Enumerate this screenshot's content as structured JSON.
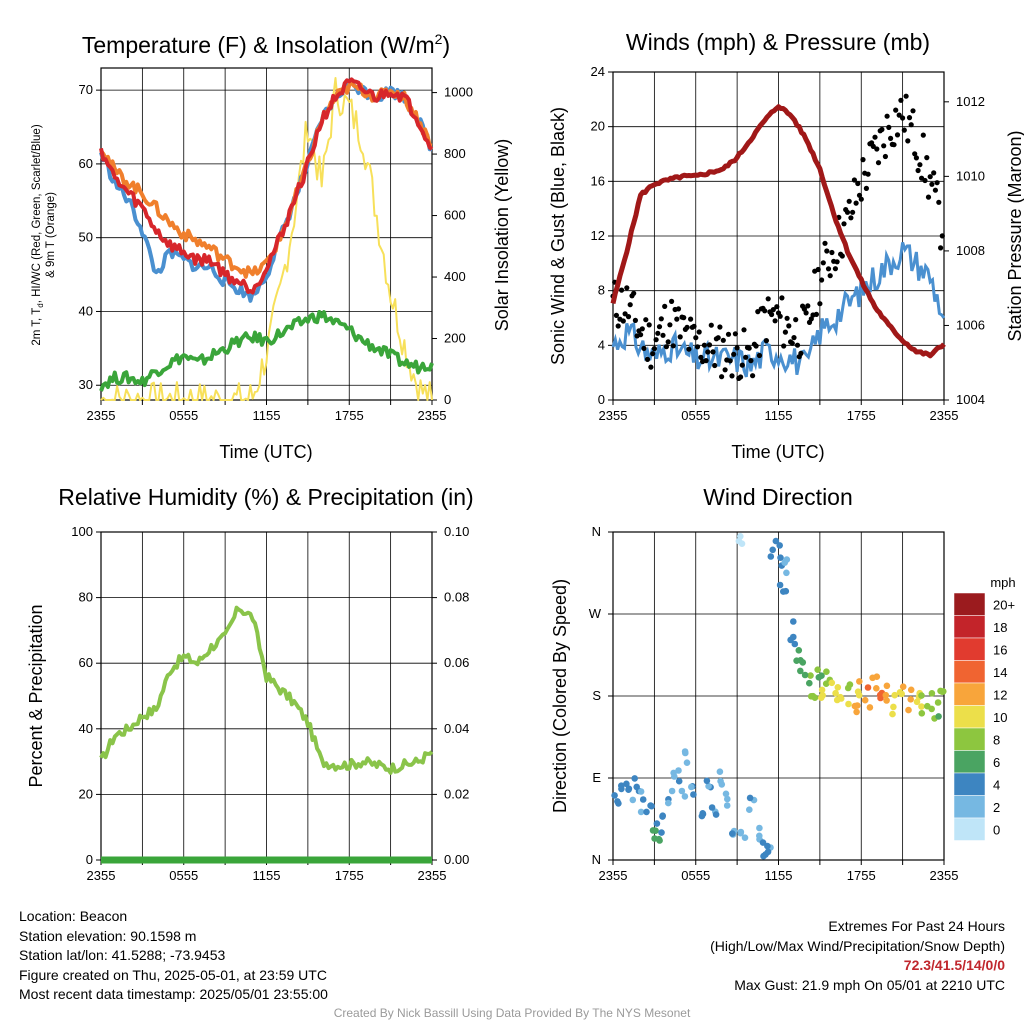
{
  "panels": {
    "temperature": {
      "title": "Temperature (F) & Insolation (W/m",
      "title_sup": "2",
      "title_tail": ")",
      "xlabel": "Time (UTC)",
      "ylabel_line1": "2m T, T",
      "ylabel_sub": "d",
      "ylabel_line1b": ", HI/WC (Red, Green, Scarlet/Blue)",
      "ylabel_line2": "& 9m T (Orange)",
      "ylabel_right": "Solar Insolation (Yellow)"
    },
    "winds": {
      "title": "Winds (mph) & Pressure (mb)",
      "xlabel": "Time (UTC)",
      "ylabel": "Sonic Wind & Gust (Blue, Black)",
      "ylabel_right": "Station Pressure (Maroon)"
    },
    "humidity": {
      "title": "Relative Humidity (%) & Precipitation (in)",
      "ylabel": "Percent & Precipitation"
    },
    "direction": {
      "title": "Wind Direction",
      "ylabel": "Direction (Colored By Speed)",
      "colorbar_title": "mph"
    }
  },
  "colors": {
    "temperature": "#d7262b",
    "heat_index_wind_chill_low": "#4a90d0",
    "dewpoint": "#3aa53a",
    "temp_9m": "#f07f2c",
    "insolation": "#f7e05a",
    "wind": "#4a90d0",
    "gust": "#000000",
    "pressure": "#a01818",
    "humidity": "#8ac44a",
    "precip": "#3aa53a"
  },
  "colorbar": [
    {
      "label": "20+",
      "color": "#9b1b1e"
    },
    {
      "label": "18",
      "color": "#c3242a"
    },
    {
      "label": "16",
      "color": "#e13b2f"
    },
    {
      "label": "14",
      "color": "#f06431"
    },
    {
      "label": "12",
      "color": "#f8a53b"
    },
    {
      "label": "10",
      "color": "#ecdf4a"
    },
    {
      "label": "8",
      "color": "#8dc63f"
    },
    {
      "label": "6",
      "color": "#4aa462"
    },
    {
      "label": "4",
      "color": "#3d85c1"
    },
    {
      "label": "2",
      "color": "#76b8e2"
    },
    {
      "label": "0",
      "color": "#bfe5f8"
    }
  ],
  "footer": {
    "location": "Location: Beacon",
    "elevation": "Station elevation: 90.1598 m",
    "latlon": "Station lat/lon: 41.5288; -73.9453",
    "created": "Figure created on Thu, 2025-05-01, at 23:59 UTC",
    "recent": "Most recent data timestamp: 2025/05/01 23:55:00",
    "extremes_title": "Extremes For Past 24 Hours",
    "extremes_sub": "(High/Low/Max Wind/Precipitation/Snow Depth)",
    "extremes_values": "72.3/41.5/14/0/0",
    "max_gust": "Max Gust: 21.9 mph On 05/01 at 2210 UTC",
    "credit": "Created By Nick Bassill Using Data Provided By The NYS Mesonet"
  },
  "chart_data": [
    {
      "type": "line",
      "title": "Temperature (F) & Insolation (W/m2)",
      "xlabel": "Time (UTC)",
      "ylabel": "2m T, Td, HI/WC (Red, Green, Scarlet/Blue) & 9m T (Orange)",
      "ylabel_right": "Solar Insolation (Yellow)",
      "x_ticks": [
        "2355",
        "0555",
        "1155",
        "1755",
        "2355"
      ],
      "ylim": [
        28,
        73
      ],
      "y_ticks": [
        30,
        40,
        50,
        60,
        70
      ],
      "ylim_right": [
        0,
        1080
      ],
      "y_ticks_right": [
        0,
        200,
        400,
        600,
        800,
        1000
      ],
      "x_hours": [
        0,
        1,
        2,
        3,
        4,
        5,
        6,
        7,
        8,
        9,
        10,
        11,
        12,
        13,
        14,
        15,
        16,
        17,
        18,
        19,
        20,
        21,
        22,
        23,
        24
      ],
      "series": [
        {
          "name": "2m T",
          "color": "#d7262b",
          "axis": "left",
          "values": [
            62,
            58,
            56,
            54,
            51,
            49,
            48,
            47,
            47,
            45,
            44,
            43,
            46,
            50,
            55,
            60,
            66,
            69,
            71,
            70,
            69,
            70,
            69,
            66,
            62
          ]
        },
        {
          "name": "9m T",
          "color": "#f07f2c",
          "axis": "left",
          "values": [
            62.5,
            59,
            57.5,
            56,
            54,
            52,
            50.5,
            49.5,
            48.5,
            47,
            46,
            45,
            46.5,
            50,
            55,
            60,
            66,
            69,
            70.5,
            70,
            69,
            70,
            69,
            66,
            62.5
          ]
        },
        {
          "name": "HI/WC",
          "color": "#4a90d0",
          "axis": "left",
          "values": [
            61.5,
            57.5,
            55,
            51,
            45,
            48,
            47,
            46,
            46,
            44,
            43,
            42,
            45,
            50,
            55,
            60,
            66,
            69,
            71,
            70,
            69,
            70,
            69,
            66,
            62
          ]
        },
        {
          "name": "Td",
          "color": "#3aa53a",
          "axis": "left",
          "values": [
            30,
            31,
            31,
            30.5,
            32,
            33,
            34,
            33,
            34,
            35,
            36,
            36.5,
            36,
            37,
            38,
            39,
            39.5,
            38.5,
            37.5,
            36,
            35,
            34,
            33,
            32.5,
            33
          ]
        },
        {
          "name": "Insolation",
          "color": "#f7e05a",
          "axis": "right",
          "values": [
            0,
            0,
            0,
            0,
            0,
            0,
            0,
            0,
            0,
            0,
            0,
            10,
            150,
            350,
            600,
            900,
            700,
            1000,
            950,
            850,
            600,
            350,
            180,
            40,
            0
          ]
        }
      ]
    },
    {
      "type": "line",
      "title": "Winds (mph) & Pressure (mb)",
      "xlabel": "Time (UTC)",
      "ylabel": "Sonic Wind & Gust (Blue, Black)",
      "ylabel_right": "Station Pressure (Maroon)",
      "x_ticks": [
        "2355",
        "0555",
        "1155",
        "1755",
        "2355"
      ],
      "ylim": [
        0,
        24
      ],
      "y_ticks": [
        0,
        4,
        8,
        12,
        16,
        20,
        24
      ],
      "ylim_right": [
        1004,
        1012.8
      ],
      "y_ticks_right": [
        1004,
        1006,
        1008,
        1010,
        1012
      ],
      "x_hours": [
        0,
        1,
        2,
        3,
        4,
        5,
        6,
        7,
        8,
        9,
        10,
        11,
        12,
        13,
        14,
        15,
        16,
        17,
        18,
        19,
        20,
        21,
        22,
        23,
        24
      ],
      "series": [
        {
          "name": "Wind",
          "color": "#4a90d0",
          "axis": "left",
          "values": [
            4,
            5,
            4,
            3,
            4,
            3.5,
            3,
            3,
            3,
            3,
            2.5,
            3.5,
            3.5,
            3,
            2.5,
            5,
            6,
            7,
            8,
            9,
            10,
            11,
            10,
            9,
            6
          ]
        },
        {
          "name": "Gust",
          "color": "#000000",
          "axis": "left",
          "values": [
            7,
            7,
            5,
            4,
            6,
            5,
            4,
            4,
            3.5,
            3.5,
            3,
            6,
            6,
            5,
            5,
            9,
            11,
            13,
            16,
            18,
            20,
            21,
            19,
            16,
            12
          ]
        },
        {
          "name": "Pressure",
          "color": "#a01818",
          "axis": "right",
          "values": [
            1006.6,
            1008.0,
            1009.5,
            1009.8,
            1009.9,
            1010.0,
            1010.0,
            1010.1,
            1010.2,
            1010.5,
            1011.0,
            1011.5,
            1011.9,
            1011.6,
            1011.0,
            1010.2,
            1009.0,
            1008.0,
            1007.2,
            1006.5,
            1006.0,
            1005.6,
            1005.3,
            1005.2,
            1005.5
          ]
        }
      ]
    },
    {
      "type": "line",
      "title": "Relative Humidity (%) & Precipitation (in)",
      "ylabel": "Percent & Precipitation",
      "x_ticks": [
        "2355",
        "0555",
        "1155",
        "1755",
        "2355"
      ],
      "ylim": [
        0,
        100
      ],
      "y_ticks": [
        0,
        20,
        40,
        60,
        80,
        100
      ],
      "ylim_right": [
        0,
        0.1
      ],
      "y_ticks_right": [
        "0.00",
        "0.02",
        "0.04",
        "0.06",
        "0.08",
        "0.10"
      ],
      "x_hours": [
        0,
        1,
        2,
        3,
        4,
        5,
        6,
        7,
        8,
        9,
        10,
        11,
        12,
        13,
        14,
        15,
        16,
        17,
        18,
        19,
        20,
        21,
        22,
        23,
        24
      ],
      "series": [
        {
          "name": "Relative Humidity",
          "color": "#8ac44a",
          "axis": "left",
          "values": [
            30,
            38,
            40,
            44,
            46,
            58,
            62,
            60,
            65,
            68,
            77,
            74,
            56,
            52,
            48,
            42,
            30,
            29,
            29,
            30,
            29,
            28,
            29,
            30,
            33
          ]
        },
        {
          "name": "Precipitation",
          "color": "#3aa53a",
          "axis": "right",
          "values": [
            0,
            0,
            0,
            0,
            0,
            0,
            0,
            0,
            0,
            0,
            0,
            0,
            0,
            0,
            0,
            0,
            0,
            0,
            0,
            0,
            0,
            0,
            0,
            0,
            0
          ]
        }
      ]
    },
    {
      "type": "scatter",
      "title": "Wind Direction",
      "ylabel": "Direction (Colored By Speed)",
      "x_ticks": [
        "2355",
        "0555",
        "1155",
        "1755",
        "2355"
      ],
      "y_ticks": [
        "N",
        "E",
        "S",
        "W",
        "N"
      ],
      "ylim": [
        0,
        360
      ],
      "legend": "right",
      "points": [
        {
          "h": 0.3,
          "d": 60,
          "s": 4
        },
        {
          "h": 0.8,
          "d": 75,
          "s": 4
        },
        {
          "h": 1.2,
          "d": 70,
          "s": 3
        },
        {
          "h": 1.8,
          "d": 85,
          "s": 4
        },
        {
          "h": 2.2,
          "d": 65,
          "s": 3
        },
        {
          "h": 2.6,
          "d": 55,
          "s": 4
        },
        {
          "h": 3.0,
          "d": 30,
          "s": 5
        },
        {
          "h": 3.3,
          "d": 20,
          "s": 6
        },
        {
          "h": 3.6,
          "d": 40,
          "s": 4
        },
        {
          "h": 4.1,
          "d": 70,
          "s": 3
        },
        {
          "h": 4.5,
          "d": 95,
          "s": 2
        },
        {
          "h": 5.0,
          "d": 80,
          "s": 3
        },
        {
          "h": 5.4,
          "d": 110,
          "s": 2
        },
        {
          "h": 5.8,
          "d": 75,
          "s": 3
        },
        {
          "h": 6.3,
          "d": 60,
          "s": 4
        },
        {
          "h": 6.9,
          "d": 85,
          "s": 3
        },
        {
          "h": 7.4,
          "d": 55,
          "s": 3
        },
        {
          "h": 7.9,
          "d": 90,
          "s": 2
        },
        {
          "h": 8.4,
          "d": 70,
          "s": 2
        },
        {
          "h": 8.8,
          "d": 40,
          "s": 3
        },
        {
          "h": 9.2,
          "d": 350,
          "s": 1
        },
        {
          "h": 9.5,
          "d": 25,
          "s": 2
        },
        {
          "h": 10.0,
          "d": 60,
          "s": 3
        },
        {
          "h": 10.5,
          "d": 30,
          "s": 2
        },
        {
          "h": 11.0,
          "d": 15,
          "s": 4
        },
        {
          "h": 11.3,
          "d": 5,
          "s": 3
        },
        {
          "h": 11.6,
          "d": 340,
          "s": 3
        },
        {
          "h": 12.0,
          "d": 335,
          "s": 4
        },
        {
          "h": 12.3,
          "d": 300,
          "s": 3
        },
        {
          "h": 12.6,
          "d": 320,
          "s": 2
        },
        {
          "h": 13.0,
          "d": 250,
          "s": 4
        },
        {
          "h": 13.3,
          "d": 230,
          "s": 5
        },
        {
          "h": 13.7,
          "d": 215,
          "s": 6
        },
        {
          "h": 14.1,
          "d": 200,
          "s": 7
        },
        {
          "h": 14.5,
          "d": 190,
          "s": 8
        },
        {
          "h": 14.9,
          "d": 205,
          "s": 7
        },
        {
          "h": 15.3,
          "d": 180,
          "s": 9
        },
        {
          "h": 15.7,
          "d": 195,
          "s": 8
        },
        {
          "h": 16.1,
          "d": 185,
          "s": 10
        },
        {
          "h": 16.5,
          "d": 178,
          "s": 11
        },
        {
          "h": 17.0,
          "d": 180,
          "s": 9
        },
        {
          "h": 17.5,
          "d": 175,
          "s": 12
        },
        {
          "h": 18.0,
          "d": 185,
          "s": 11
        },
        {
          "h": 18.5,
          "d": 178,
          "s": 13
        },
        {
          "h": 19.0,
          "d": 190,
          "s": 12
        },
        {
          "h": 19.5,
          "d": 176,
          "s": 14
        },
        {
          "h": 20.0,
          "d": 182,
          "s": 12
        },
        {
          "h": 20.5,
          "d": 170,
          "s": 10
        },
        {
          "h": 21.0,
          "d": 185,
          "s": 11
        },
        {
          "h": 21.5,
          "d": 175,
          "s": 12
        },
        {
          "h": 22.0,
          "d": 180,
          "s": 10
        },
        {
          "h": 22.5,
          "d": 170,
          "s": 9
        },
        {
          "h": 23.0,
          "d": 178,
          "s": 8
        },
        {
          "h": 23.5,
          "d": 165,
          "s": 7
        },
        {
          "h": 23.9,
          "d": 180,
          "s": 8
        }
      ]
    }
  ]
}
